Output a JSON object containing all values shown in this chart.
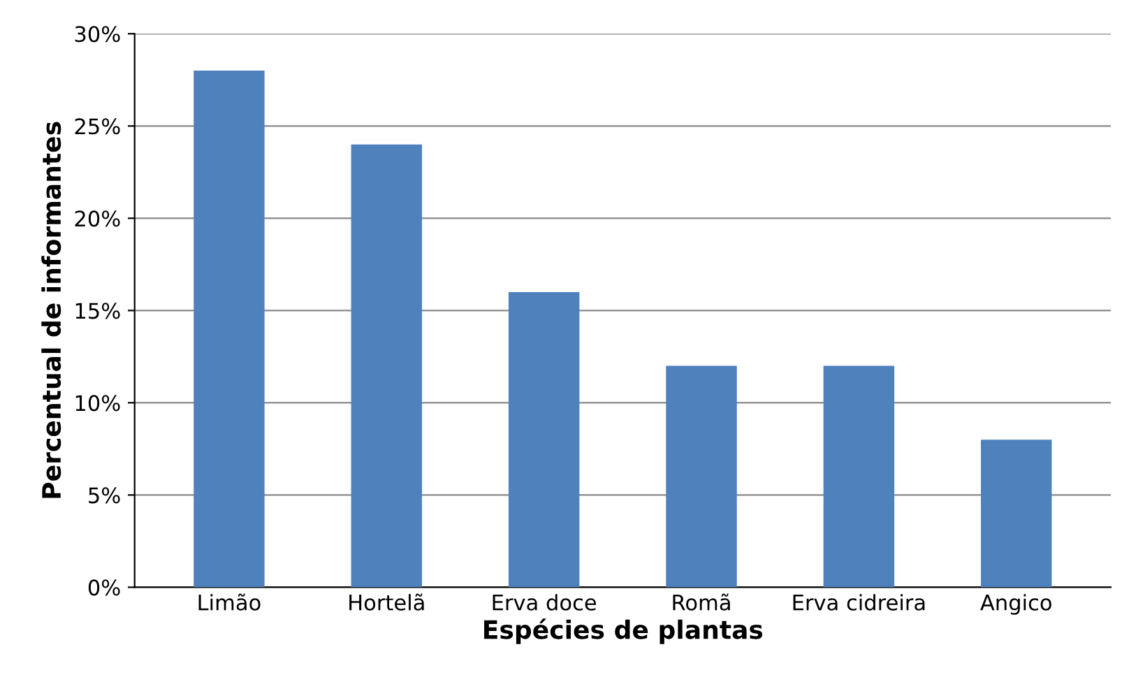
{
  "chart_data": {
    "type": "bar",
    "xlabel": "Espécies de plantas",
    "ylabel": "Percentual de informantes",
    "categories": [
      "Limão",
      "Hortelã",
      "Erva doce",
      "Romã",
      "Erva cidreira",
      "Angico"
    ],
    "series": [
      {
        "color": "#4f81bd",
        "values": [
          28,
          24,
          16,
          12,
          12,
          8
        ]
      }
    ],
    "ylim": [
      0,
      30
    ],
    "yticks": [
      {
        "value": 0,
        "label": "0%"
      },
      {
        "value": 5,
        "label": "5%"
      },
      {
        "value": 10,
        "label": "10%"
      },
      {
        "value": 15,
        "label": "15%"
      },
      {
        "value": 20,
        "label": "20%"
      },
      {
        "value": 25,
        "label": "25%"
      },
      {
        "value": 30,
        "label": "30%"
      }
    ],
    "grid": "y",
    "legend": false
  }
}
